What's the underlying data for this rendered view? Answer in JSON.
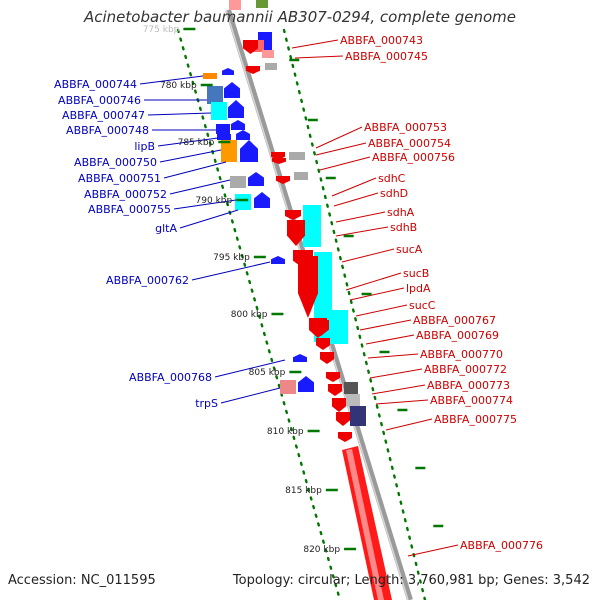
{
  "title": "Acinetobacter baumannii AB307-0294, complete genome",
  "footer": {
    "accession": "Accession: NC_011595",
    "stats": "Topology: circular; Length: 3,760,981 bp; Genes: 3,542"
  },
  "colors": {
    "left_label": "#0000bb",
    "right_label": "#cc0000",
    "tick": "#007700",
    "backbone": "#888888"
  },
  "kbp_ticks": [
    {
      "label": "775 kbp",
      "faint": true
    },
    {
      "label": "780 kbp"
    },
    {
      "label": "785 kbp"
    },
    {
      "label": "790 kbp"
    },
    {
      "label": "795 kbp"
    },
    {
      "label": "800 kbp"
    },
    {
      "label": "805 kbp"
    },
    {
      "label": "810 kbp"
    },
    {
      "label": "815 kbp"
    },
    {
      "label": "820 kbp"
    }
  ],
  "left_labels": [
    "ABBFA_000744",
    "ABBFA_000746",
    "ABBFA_000747",
    "ABBFA_000748",
    "lipB",
    "ABBFA_000750",
    "ABBFA_000751",
    "ABBFA_000752",
    "ABBFA_000755",
    "gltA",
    "ABBFA_000762",
    "ABBFA_000768",
    "trpS"
  ],
  "right_labels": [
    "ABBFA_000743",
    "ABBFA_000745",
    "ABBFA_000753",
    "ABBFA_000754",
    "ABBFA_000756",
    "sdhC",
    "sdhD",
    "sdhA",
    "sdhB",
    "sucA",
    "sucB",
    "lpdA",
    "sucC",
    "ABBFA_000767",
    "ABBFA_000769",
    "ABBFA_000770",
    "ABBFA_000772",
    "ABBFA_000773",
    "ABBFA_000774",
    "ABBFA_000775",
    "ABBFA_000776"
  ]
}
